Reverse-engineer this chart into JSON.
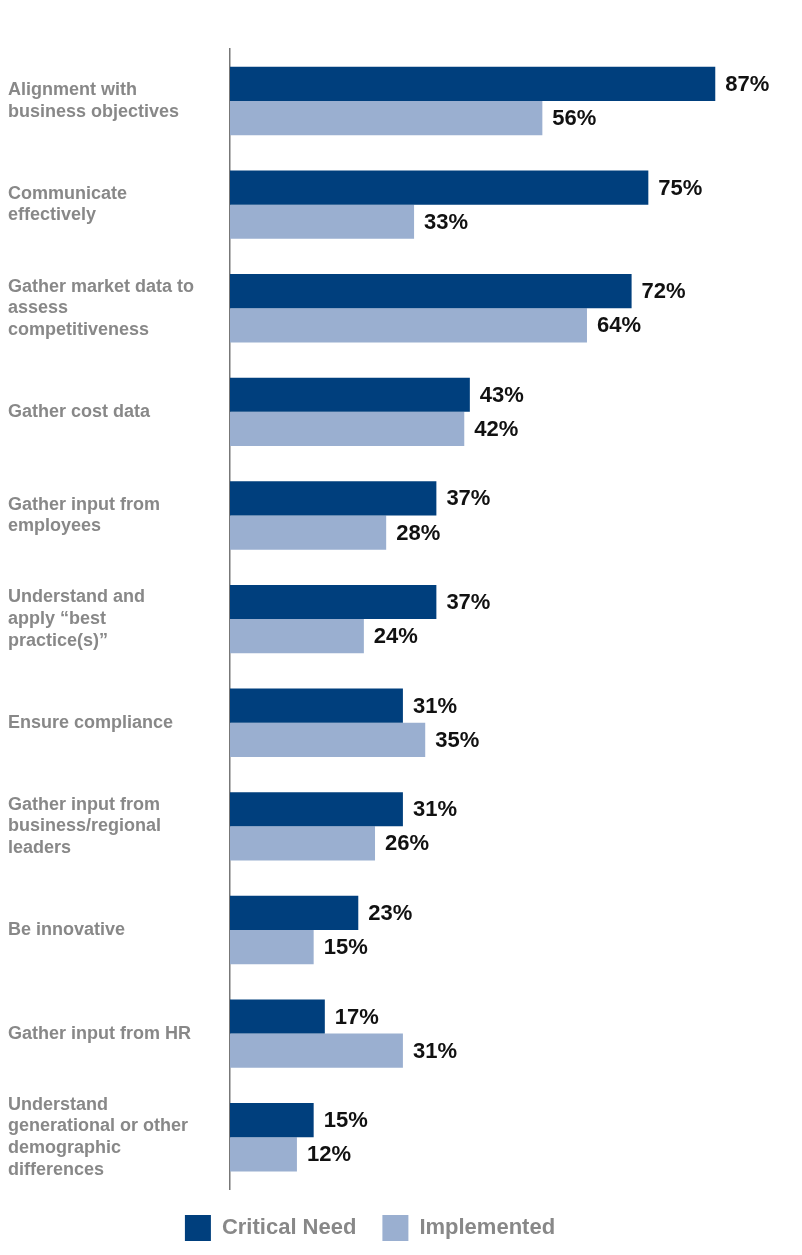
{
  "chart_data": {
    "type": "bar",
    "orientation": "horizontal",
    "categories": [
      "Alignment with business objectives",
      "Communicate effectively",
      "Gather market data to assess competitiveness",
      "Gather cost data",
      "Gather input from employees",
      "Understand and apply “best practice(s)”",
      "Ensure compliance",
      "Gather input from business/regional leaders",
      "Be innovative",
      "Gather input from HR",
      "Understand generational or other demographic differences"
    ],
    "series": [
      {
        "name": "Critical Need",
        "color": "#003f7d",
        "values": [
          87,
          75,
          72,
          43,
          37,
          37,
          31,
          31,
          23,
          17,
          15
        ],
        "value_labels": [
          "87%",
          "75%",
          "72%",
          "43%",
          "37%",
          "37%",
          "31%",
          "31%",
          "23%",
          "17%",
          "15%"
        ]
      },
      {
        "name": "Implemented",
        "color": "#9aafd0",
        "values": [
          56,
          33,
          64,
          42,
          28,
          24,
          35,
          26,
          15,
          31,
          12
        ],
        "value_labels": [
          "56%",
          "33%",
          "64%",
          "42%",
          "28%",
          "24%",
          "35%",
          "26%",
          "15%",
          "31%",
          "12%"
        ]
      }
    ],
    "legend": "bottom"
  }
}
